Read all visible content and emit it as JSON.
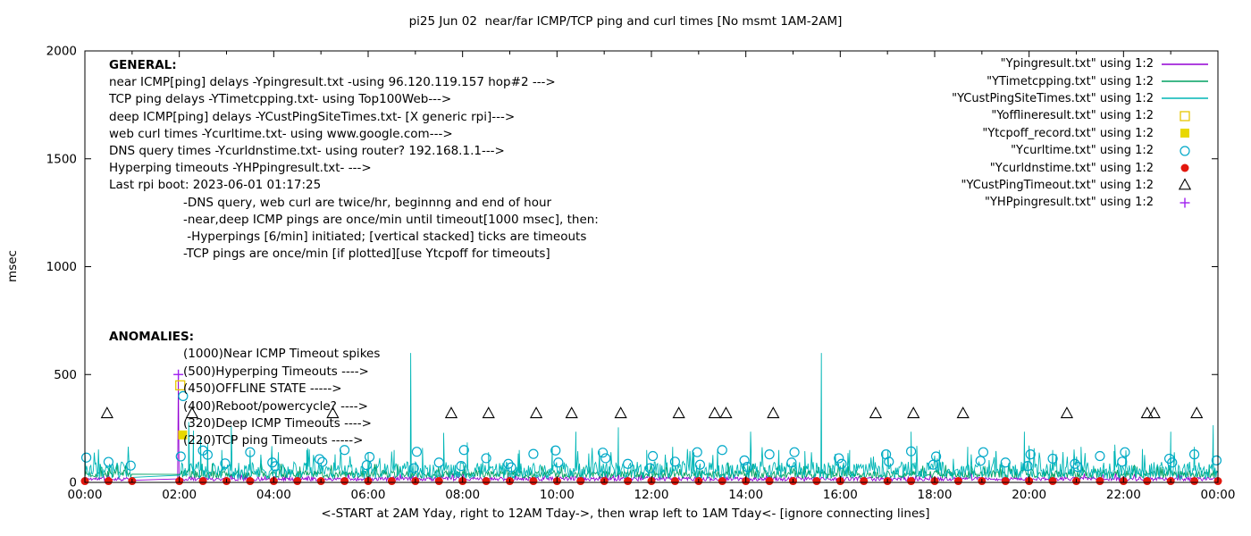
{
  "chart_data": {
    "type": "line",
    "title": "pi25 Jun 02  near/far ICMP/TCP ping and curl times [No msmt 1AM-2AM]",
    "ylabel": "msec",
    "xlabel": "<-START at 2AM Yday, right to 12AM Tday->, then wrap left to 1AM Tday<- [ignore connecting lines]",
    "ylim": [
      0,
      2000
    ],
    "xlim": [
      0,
      24
    ],
    "yticks": [
      0,
      500,
      1000,
      1500,
      2000
    ],
    "xticks": [
      {
        "v": 0,
        "l": "00:00"
      },
      {
        "v": 2,
        "l": "02:00"
      },
      {
        "v": 4,
        "l": "04:00"
      },
      {
        "v": 6,
        "l": "06:00"
      },
      {
        "v": 8,
        "l": "08:00"
      },
      {
        "v": 10,
        "l": "10:00"
      },
      {
        "v": 12,
        "l": "12:00"
      },
      {
        "v": 14,
        "l": "14:00"
      },
      {
        "v": 16,
        "l": "16:00"
      },
      {
        "v": 18,
        "l": "18:00"
      },
      {
        "v": 20,
        "l": "20:00"
      },
      {
        "v": 22,
        "l": "22:00"
      },
      {
        "v": 24,
        "l": "00:00"
      }
    ],
    "xminor_step": 1,
    "grid": false,
    "legend_position": "top-right",
    "no_measurement_gap_hours": [
      1,
      2
    ],
    "series": [
      {
        "id": "ypingresult",
        "name": "\"Ypingresult.txt\" using 1:2",
        "kind": "noise-line",
        "color": "#9400d3",
        "noise": {
          "seed": 11,
          "mean": 16,
          "amp": 9
        },
        "gap": [
          1,
          2
        ],
        "spikes": [
          [
            1.98,
            500
          ]
        ]
      },
      {
        "id": "ytimetcpping",
        "name": "\"YTimetcpping.txt\" using 1:2",
        "kind": "noise-line",
        "color": "#00a060",
        "noise": {
          "seed": 7,
          "mean": 38,
          "amp": 18
        },
        "gap": [
          1,
          2
        ],
        "spikes": []
      },
      {
        "id": "ycustpingsitetimes",
        "name": "\"YCustPingSiteTimes.txt\" using 1:2",
        "kind": "noise-line",
        "color": "#00b6b6",
        "noise": {
          "seed": 3,
          "mean": 55,
          "amp": 40
        },
        "gap": [
          1,
          2
        ],
        "spikes": [
          [
            2.2,
            280
          ],
          [
            2.3,
            240
          ],
          [
            2.45,
            210
          ],
          [
            2.6,
            180
          ],
          [
            2.9,
            150
          ],
          [
            3.1,
            260
          ],
          [
            3.5,
            150
          ],
          [
            4.1,
            140
          ],
          [
            4.7,
            150
          ],
          [
            5.3,
            130
          ],
          [
            6.0,
            140
          ],
          [
            6.55,
            150
          ],
          [
            6.9,
            600
          ],
          [
            7.15,
            160
          ],
          [
            7.6,
            230
          ],
          [
            8.1,
            185
          ],
          [
            8.55,
            140
          ],
          [
            9.2,
            150
          ],
          [
            9.9,
            165
          ],
          [
            10.4,
            235
          ],
          [
            10.9,
            145
          ],
          [
            11.3,
            255
          ],
          [
            11.9,
            150
          ],
          [
            12.45,
            165
          ],
          [
            12.9,
            140
          ],
          [
            13.4,
            155
          ],
          [
            14.1,
            235
          ],
          [
            14.7,
            150
          ],
          [
            15.25,
            145
          ],
          [
            15.6,
            600
          ],
          [
            16.2,
            150
          ],
          [
            16.9,
            145
          ],
          [
            17.5,
            235
          ],
          [
            18.1,
            150
          ],
          [
            18.7,
            165
          ],
          [
            19.3,
            145
          ],
          [
            19.9,
            235
          ],
          [
            20.5,
            150
          ],
          [
            21.1,
            165
          ],
          [
            21.8,
            145
          ],
          [
            22.4,
            155
          ],
          [
            23.0,
            235
          ],
          [
            23.5,
            165
          ],
          [
            23.9,
            265
          ]
        ]
      },
      {
        "id": "yofflineresult",
        "name": "\"Yofflineresult.txt\" using 1:2",
        "kind": "scatter",
        "marker": "square-open",
        "color": "#e6c700",
        "points": [
          [
            2.02,
            450
          ]
        ]
      },
      {
        "id": "ytcpoff_record",
        "name": "\"Ytcpoff_record.txt\" using 1:2",
        "kind": "scatter",
        "marker": "square-filled",
        "color": "#e8d800",
        "points": [
          [
            2.07,
            220
          ]
        ]
      },
      {
        "id": "ycurltime",
        "name": "\"Ycurltime.txt\" using 1:2",
        "kind": "scatter",
        "marker": "circle-open",
        "color": "#00a8c8",
        "points": [
          [
            0.03,
            115
          ],
          [
            0.5,
            95
          ],
          [
            0.97,
            78
          ],
          [
            2.03,
            120
          ],
          [
            2.08,
            400
          ],
          [
            2.5,
            148
          ],
          [
            2.6,
            128
          ],
          [
            2.97,
            88
          ],
          [
            3.5,
            140
          ],
          [
            3.97,
            92
          ],
          [
            4.03,
            75
          ],
          [
            4.97,
            108
          ],
          [
            5.03,
            95
          ],
          [
            5.5,
            150
          ],
          [
            5.97,
            80
          ],
          [
            6.03,
            118
          ],
          [
            6.97,
            66
          ],
          [
            7.03,
            142
          ],
          [
            7.5,
            92
          ],
          [
            7.97,
            76
          ],
          [
            8.03,
            150
          ],
          [
            8.5,
            112
          ],
          [
            8.97,
            86
          ],
          [
            9.03,
            70
          ],
          [
            9.5,
            132
          ],
          [
            9.97,
            148
          ],
          [
            10.03,
            92
          ],
          [
            10.97,
            138
          ],
          [
            11.03,
            112
          ],
          [
            11.5,
            86
          ],
          [
            11.97,
            66
          ],
          [
            12.03,
            122
          ],
          [
            12.5,
            96
          ],
          [
            12.97,
            140
          ],
          [
            13.03,
            82
          ],
          [
            13.5,
            150
          ],
          [
            13.97,
            102
          ],
          [
            14.03,
            72
          ],
          [
            14.5,
            130
          ],
          [
            14.97,
            92
          ],
          [
            15.03,
            140
          ],
          [
            15.97,
            112
          ],
          [
            16.03,
            86
          ],
          [
            16.97,
            130
          ],
          [
            17.03,
            96
          ],
          [
            17.5,
            144
          ],
          [
            17.97,
            82
          ],
          [
            18.03,
            120
          ],
          [
            18.97,
            100
          ],
          [
            19.03,
            140
          ],
          [
            19.5,
            92
          ],
          [
            19.97,
            76
          ],
          [
            20.03,
            130
          ],
          [
            20.5,
            110
          ],
          [
            20.97,
            86
          ],
          [
            21.03,
            72
          ],
          [
            21.5,
            122
          ],
          [
            21.97,
            96
          ],
          [
            22.03,
            140
          ],
          [
            22.97,
            110
          ],
          [
            23.03,
            92
          ],
          [
            23.5,
            130
          ],
          [
            23.97,
            102
          ]
        ]
      },
      {
        "id": "ycurldnstime",
        "name": "\"Ycurldnstime.txt\" using 1:2",
        "kind": "scatter",
        "marker": "circle-filled",
        "color": "#e3170d",
        "points": [
          [
            0,
            6
          ],
          [
            0.5,
            6
          ],
          [
            1,
            6
          ],
          [
            2,
            6
          ],
          [
            2.5,
            6
          ],
          [
            3,
            6
          ],
          [
            3.5,
            6
          ],
          [
            4,
            6
          ],
          [
            4.5,
            6
          ],
          [
            5,
            6
          ],
          [
            5.5,
            6
          ],
          [
            6,
            6
          ],
          [
            6.5,
            6
          ],
          [
            7,
            6
          ],
          [
            7.5,
            6
          ],
          [
            8,
            6
          ],
          [
            8.5,
            6
          ],
          [
            9,
            6
          ],
          [
            9.5,
            6
          ],
          [
            10,
            6
          ],
          [
            10.5,
            6
          ],
          [
            11,
            6
          ],
          [
            11.5,
            6
          ],
          [
            12,
            6
          ],
          [
            12.5,
            6
          ],
          [
            13,
            6
          ],
          [
            13.5,
            6
          ],
          [
            14,
            6
          ],
          [
            14.5,
            6
          ],
          [
            15,
            6
          ],
          [
            15.5,
            6
          ],
          [
            16,
            6
          ],
          [
            16.5,
            6
          ],
          [
            17,
            6
          ],
          [
            17.5,
            6
          ],
          [
            18,
            6
          ],
          [
            18.5,
            6
          ],
          [
            19,
            6
          ],
          [
            19.5,
            6
          ],
          [
            20,
            6
          ],
          [
            20.5,
            6
          ],
          [
            21,
            6
          ],
          [
            21.5,
            6
          ],
          [
            22,
            6
          ],
          [
            22.5,
            6
          ],
          [
            23,
            6
          ],
          [
            23.5,
            6
          ],
          [
            24,
            6
          ]
        ]
      },
      {
        "id": "ycustpingtimeout",
        "name": "\"YCustPingTimeout.txt\" using 1:2",
        "kind": "scatter",
        "marker": "triangle-open",
        "color": "#000000",
        "points": [
          [
            0.47,
            320
          ],
          [
            2.27,
            320
          ],
          [
            5.25,
            320
          ],
          [
            7.76,
            320
          ],
          [
            8.55,
            320
          ],
          [
            9.56,
            320
          ],
          [
            10.31,
            320
          ],
          [
            11.35,
            320
          ],
          [
            12.58,
            320
          ],
          [
            13.34,
            320
          ],
          [
            13.58,
            320
          ],
          [
            14.58,
            320
          ],
          [
            16.75,
            320
          ],
          [
            17.55,
            320
          ],
          [
            18.6,
            320
          ],
          [
            20.8,
            320
          ],
          [
            22.5,
            320
          ],
          [
            22.65,
            320
          ],
          [
            23.55,
            320
          ]
        ]
      },
      {
        "id": "yhppingresult",
        "name": "\"YHPpingresult.txt\" using 1:2",
        "kind": "scatter",
        "marker": "plus",
        "color": "#a020f0",
        "points": [
          [
            1.98,
            500
          ]
        ]
      }
    ]
  },
  "legend": [
    {
      "label": "\"Ypingresult.txt\" using 1:2",
      "marker": "line",
      "color": "#9400d3"
    },
    {
      "label": "\"YTimetcpping.txt\" using 1:2",
      "marker": "line",
      "color": "#00a060"
    },
    {
      "label": "\"YCustPingSiteTimes.txt\" using 1:2",
      "marker": "line",
      "color": "#00b6b6"
    },
    {
      "label": "\"Yofflineresult.txt\" using 1:2",
      "marker": "square-open",
      "color": "#e6c700"
    },
    {
      "label": "\"Ytcpoff_record.txt\" using 1:2",
      "marker": "square-filled",
      "color": "#e8d800"
    },
    {
      "label": "\"Ycurltime.txt\" using 1:2",
      "marker": "circle-open",
      "color": "#00a8c8"
    },
    {
      "label": "\"Ycurldnstime.txt\" using 1:2",
      "marker": "circle-filled",
      "color": "#e3170d"
    },
    {
      "label": "\"YCustPingTimeout.txt\" using 1:2",
      "marker": "triangle-open",
      "color": "#000000"
    },
    {
      "label": "\"YHPpingresult.txt\" using 1:2",
      "marker": "plus",
      "color": "#a020f0"
    }
  ],
  "annotations": {
    "general": {
      "heading": "GENERAL:",
      "lines": [
        "near ICMP[ping] delays -Ypingresult.txt -using 96.120.119.157 hop#2 --->",
        "TCP ping delays -YTimetcpping.txt- using Top100Web--->",
        "deep ICMP[ping] delays -YCustPingSiteTimes.txt- [X generic rpi]--->",
        "web curl times -Ycurltime.txt- using www.google.com--->",
        "DNS query times -Ycurldnstime.txt- using router? 192.168.1.1--->",
        "Hyperping timeouts -YHPpingresult.txt- --->",
        "Last rpi boot: 2023-06-01 01:17:25"
      ],
      "sublines": [
        "-DNS query, web curl are twice/hr, beginnng and end of hour",
        "-near,deep ICMP pings are once/min until timeout[1000 msec], then:",
        " -Hyperpings [6/min] initiated; [vertical stacked] ticks are timeouts",
        "-TCP pings are once/min [if plotted][use Ytcpoff for timeouts]"
      ]
    },
    "anomalies": {
      "heading": "ANOMALIES:",
      "lines": [
        "(1000)Near ICMP Timeout spikes",
        "(500)Hyperping Timeouts ---->",
        "(450)OFFLINE STATE ----->",
        "(400)Reboot/powercycle? ---->",
        "(320)Deep ICMP Timeouts ---->",
        "(220)TCP ping Timeouts ----->"
      ]
    }
  }
}
